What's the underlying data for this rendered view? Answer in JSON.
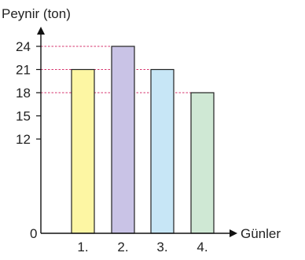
{
  "chart_data": {
    "type": "bar",
    "ylabel": "Peynir (ton)",
    "xlabel": "Günler",
    "categories": [
      "1.",
      "2.",
      "3.",
      "4."
    ],
    "values": [
      21,
      24,
      21,
      18
    ],
    "colors": [
      "#fdf6a3",
      "#c9c3e6",
      "#c7e6f6",
      "#cfe8d4"
    ],
    "ylim": [
      0,
      24
    ],
    "y_ticks": [
      0,
      12,
      15,
      18,
      21,
      24
    ],
    "reference_lines": [
      24,
      21,
      18
    ],
    "reference_line_color": "#d6336c",
    "grid": false,
    "legend": "none"
  }
}
